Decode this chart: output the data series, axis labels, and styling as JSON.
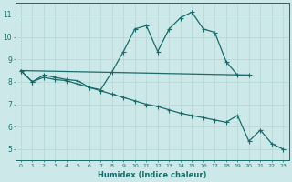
{
  "xlabel": "Humidex (Indice chaleur)",
  "bg_color": "#cce8e8",
  "grid_color": "#b8d8d8",
  "line_color": "#1a6b6b",
  "xlim": [
    -0.5,
    23.5
  ],
  "ylim": [
    4.5,
    11.5
  ],
  "xticks": [
    0,
    1,
    2,
    3,
    4,
    5,
    6,
    7,
    8,
    9,
    10,
    11,
    12,
    13,
    14,
    15,
    16,
    17,
    18,
    19,
    20,
    21,
    22,
    23
  ],
  "yticks": [
    5,
    6,
    7,
    8,
    9,
    10,
    11
  ],
  "line1_x": [
    0,
    1,
    2,
    3,
    4,
    5,
    6,
    7,
    8,
    9,
    10,
    11,
    12,
    13,
    14,
    15,
    16,
    17,
    18,
    19,
    20
  ],
  "line1_y": [
    8.5,
    8.0,
    8.3,
    8.2,
    8.1,
    8.05,
    7.75,
    7.65,
    8.45,
    9.35,
    10.35,
    10.5,
    9.35,
    10.35,
    10.85,
    11.1,
    10.35,
    10.2,
    8.9,
    8.3,
    8.3
  ],
  "line2_x": [
    0,
    20
  ],
  "line2_y": [
    8.5,
    8.3
  ],
  "line3_x": [
    0,
    1,
    2,
    3,
    4,
    5,
    6,
    7,
    8,
    9,
    10,
    11,
    12,
    13,
    14,
    15,
    16,
    17,
    18,
    19,
    20,
    21,
    22,
    23
  ],
  "line3_y": [
    8.5,
    8.0,
    8.2,
    8.1,
    8.05,
    7.9,
    7.75,
    7.6,
    7.45,
    7.3,
    7.15,
    7.0,
    6.9,
    6.75,
    6.6,
    6.5,
    6.4,
    6.3,
    6.2,
    6.5,
    5.35,
    5.85,
    5.25,
    5.0
  ],
  "marker_x1": [
    0,
    1,
    2,
    3,
    4,
    5,
    6,
    7,
    8,
    9,
    10,
    11,
    12,
    13,
    14,
    15,
    16,
    17,
    18,
    19,
    20
  ],
  "marker_x3": [
    0,
    1,
    2,
    3,
    4,
    5,
    6,
    7,
    8,
    9,
    10,
    11,
    12,
    13,
    14,
    15,
    16,
    17,
    18,
    19,
    20,
    21,
    22,
    23
  ]
}
